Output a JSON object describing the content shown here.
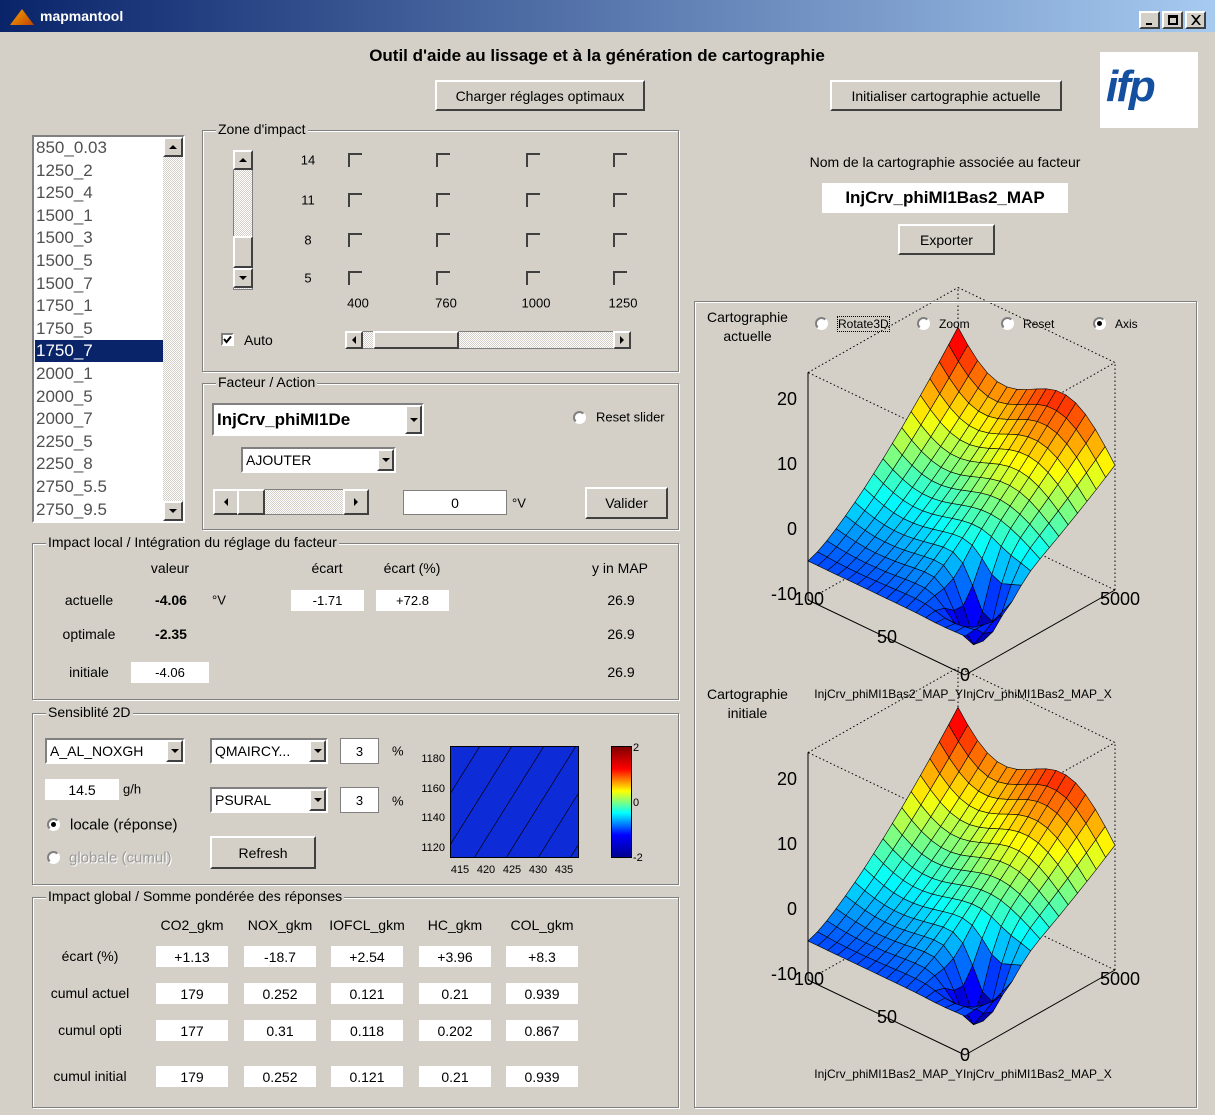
{
  "window": {
    "title": "mapmantool"
  },
  "header": {
    "title": "Outil d'aide au lissage et à la génération de cartographie",
    "load_button": "Charger réglages optimaux",
    "init_button": "Initialiser cartographie actuelle",
    "logo": "ifp"
  },
  "list": {
    "items": [
      "850_0.03",
      "1250_2",
      "1250_4",
      "1500_1",
      "1500_3",
      "1500_5",
      "1500_7",
      "1750_1",
      "1750_5",
      "1750_7",
      "2000_1",
      "2000_5",
      "2000_7",
      "2250_5",
      "2250_8",
      "2750_5.5",
      "2750_9.5"
    ]
  },
  "zone": {
    "title": "Zone d'impact",
    "rows": [
      "14",
      "11",
      "8",
      "5"
    ],
    "cols": [
      "400",
      "760",
      "1000",
      "1250"
    ],
    "auto": "Auto"
  },
  "facteur": {
    "title": "Facteur / Action",
    "factor": "InjCrv_phiMI1De",
    "action": "AJOUTER",
    "reset": "Reset slider",
    "value": "0",
    "unit": "°V",
    "validate": "Valider"
  },
  "impact_local": {
    "title": "Impact local / Intégration du réglage du facteur",
    "headers": [
      "valeur",
      "écart",
      "écart (%)",
      "y in MAP"
    ],
    "actuelle": {
      "label": "actuelle",
      "valeur": "-4.06",
      "unit": "°V",
      "ecart": "-1.71",
      "ecart_pct": "+72.8",
      "y": "26.9"
    },
    "optimale": {
      "label": "optimale",
      "valeur": "-2.35",
      "y": "26.9"
    },
    "initiale": {
      "label": "initiale",
      "valeur": "-4.06",
      "y": "26.9"
    }
  },
  "sensibilite": {
    "title": "Sensiblité 2D",
    "output": "A_AL_NOXGH",
    "output_value": "14.5",
    "output_unit": "g/h",
    "radio_local": "locale (réponse)",
    "radio_global": "globale (cumul)",
    "var1": "QMAIRCY...",
    "var1_pct": "3",
    "var1_unit": "%",
    "var2": "PSURAL",
    "var2_pct": "3",
    "var2_unit": "%",
    "refresh": "Refresh",
    "yticks": [
      "1180",
      "1160",
      "1140",
      "1120"
    ],
    "xticks": [
      "415",
      "420",
      "425",
      "430",
      "435"
    ],
    "cbar_ticks": [
      "2",
      "0",
      "-2"
    ]
  },
  "impact_global": {
    "title": "Impact global / Somme pondérée des réponses",
    "headers": [
      "CO2_gkm",
      "NOX_gkm",
      "IOFCL_gkm",
      "HC_gkm",
      "COL_gkm"
    ],
    "rows": [
      {
        "label": "écart (%)",
        "values": [
          "+1.13",
          "-18.7",
          "+2.54",
          "+3.96",
          "+8.3"
        ]
      },
      {
        "label": "cumul actuel",
        "values": [
          "179",
          "0.252",
          "0.121",
          "0.21",
          "0.939"
        ]
      },
      {
        "label": "cumul opti",
        "values": [
          "177",
          "0.31",
          "0.118",
          "0.202",
          "0.867"
        ]
      },
      {
        "label": "cumul initial",
        "values": [
          "179",
          "0.252",
          "0.121",
          "0.21",
          "0.939"
        ]
      }
    ]
  },
  "carto": {
    "label": "Nom de la cartographie associée au facteur",
    "name": "InjCrv_phiMI1Bas2_MAP",
    "export": "Exporter",
    "tools": [
      "Rotate3D",
      "Zoom",
      "Reset",
      "Axis"
    ],
    "plots": [
      {
        "title": "Cartographie actuelle",
        "zticks": [
          "20",
          "10",
          "0",
          "-10"
        ],
        "yticks": [
          "100",
          "50",
          "0"
        ],
        "xtick": "5000",
        "xlabel": "InjCrv_phiMI1Bas2_MAP_YInjCrv_phiMI1Bas2_MAP_X"
      },
      {
        "title": "Cartographie initiale",
        "zticks": [
          "20",
          "10",
          "0",
          "-10"
        ],
        "yticks": [
          "100",
          "50",
          "0"
        ],
        "xtick": "5000",
        "xlabel": "InjCrv_phiMI1Bas2_MAP_YInjCrv_phiMI1Bas2_MAP_X"
      }
    ]
  }
}
